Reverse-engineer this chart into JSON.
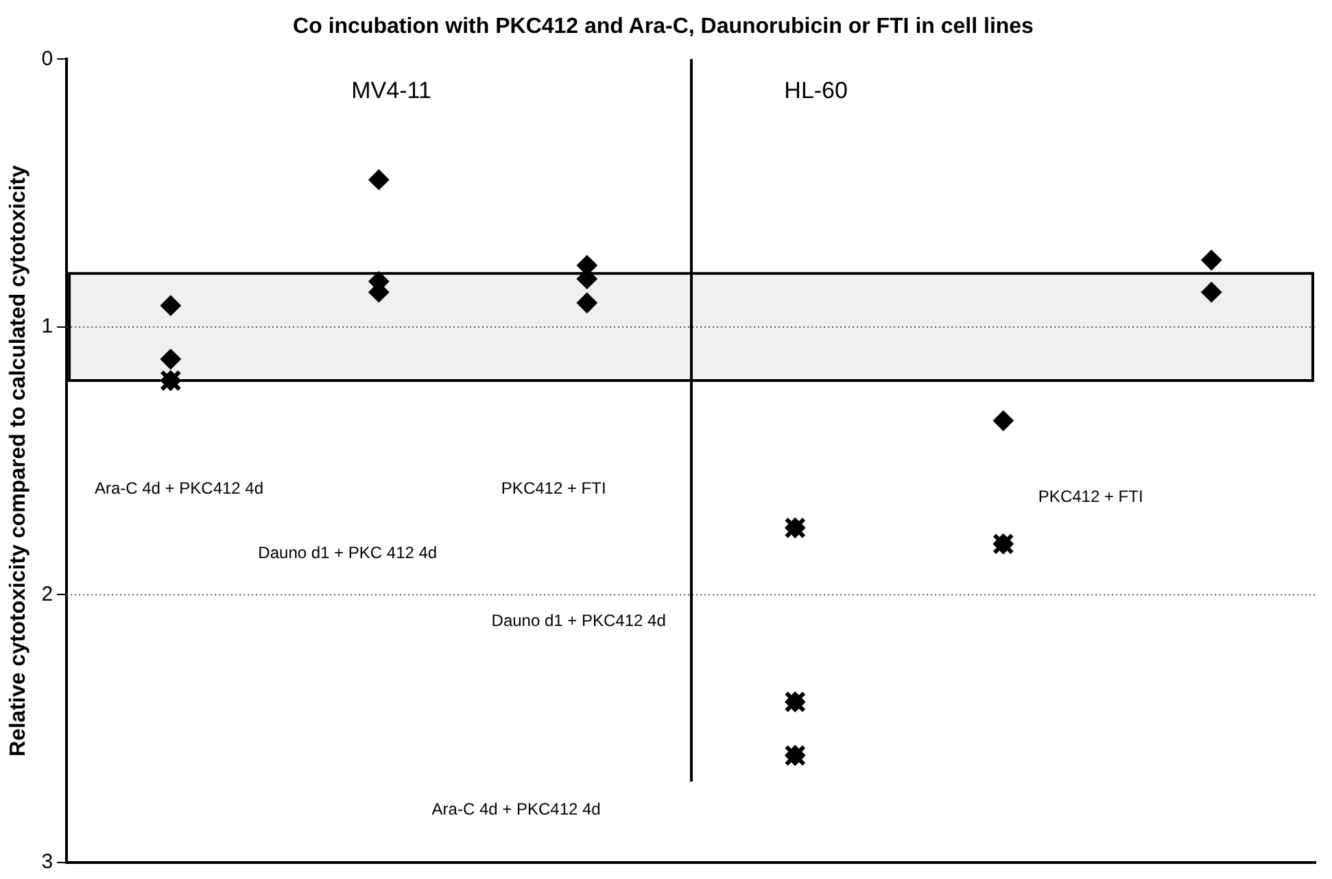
{
  "chart_data": {
    "type": "scatter",
    "title": "Co incubation with PKC412 and Ara-C, Daunorubicin or FTI in cell lines",
    "ylabel": "Relative cytotoxicity compared to calculated cytotoxicity",
    "categories": [
      null,
      null,
      null,
      null,
      null,
      null
    ],
    "series": [
      {
        "color": "#000000",
        "marker": "diamond",
        "values": [
          0.92,
          0.45,
          0.77,
          1.75,
          1.35,
          0.75
        ]
      },
      {
        "color": "#000000",
        "marker": "diamond",
        "values": [
          1.12,
          0.83,
          0.82,
          2.4,
          1.81,
          0.87
        ]
      },
      {
        "color": "#000000",
        "marker": "diamond",
        "values": [
          1.2,
          0.87,
          0.91,
          2.6,
          null,
          null
        ]
      },
      {
        "color": "#000000",
        "marker": "cross",
        "values": [
          1.2,
          null,
          null,
          1.75,
          1.81,
          null
        ]
      },
      {
        "color": "#000000",
        "marker": "cross",
        "values": [
          null,
          null,
          null,
          2.4,
          null,
          null
        ]
      },
      {
        "color": "#000000",
        "marker": "cross",
        "values": [
          null,
          null,
          null,
          2.6,
          null,
          null
        ]
      }
    ],
    "ylim": [
      3,
      0
    ],
    "yticks": [
      0,
      1,
      2,
      3
    ],
    "grid": "y",
    "legend": false,
    "bands": [
      {
        "axis": "y",
        "from": 0.8,
        "to": 1.2
      }
    ],
    "annotations": [
      "MV4-11",
      "HL-60",
      "Ara-C 4d + PKC412 4d",
      "Dauno d1 + PKC 412 4d",
      "PKC412 + FTI",
      "Ara-C 4d + PKC412 4d",
      "Dauno d1 + PKC412 4d",
      "PKC412 + FTI"
    ]
  }
}
